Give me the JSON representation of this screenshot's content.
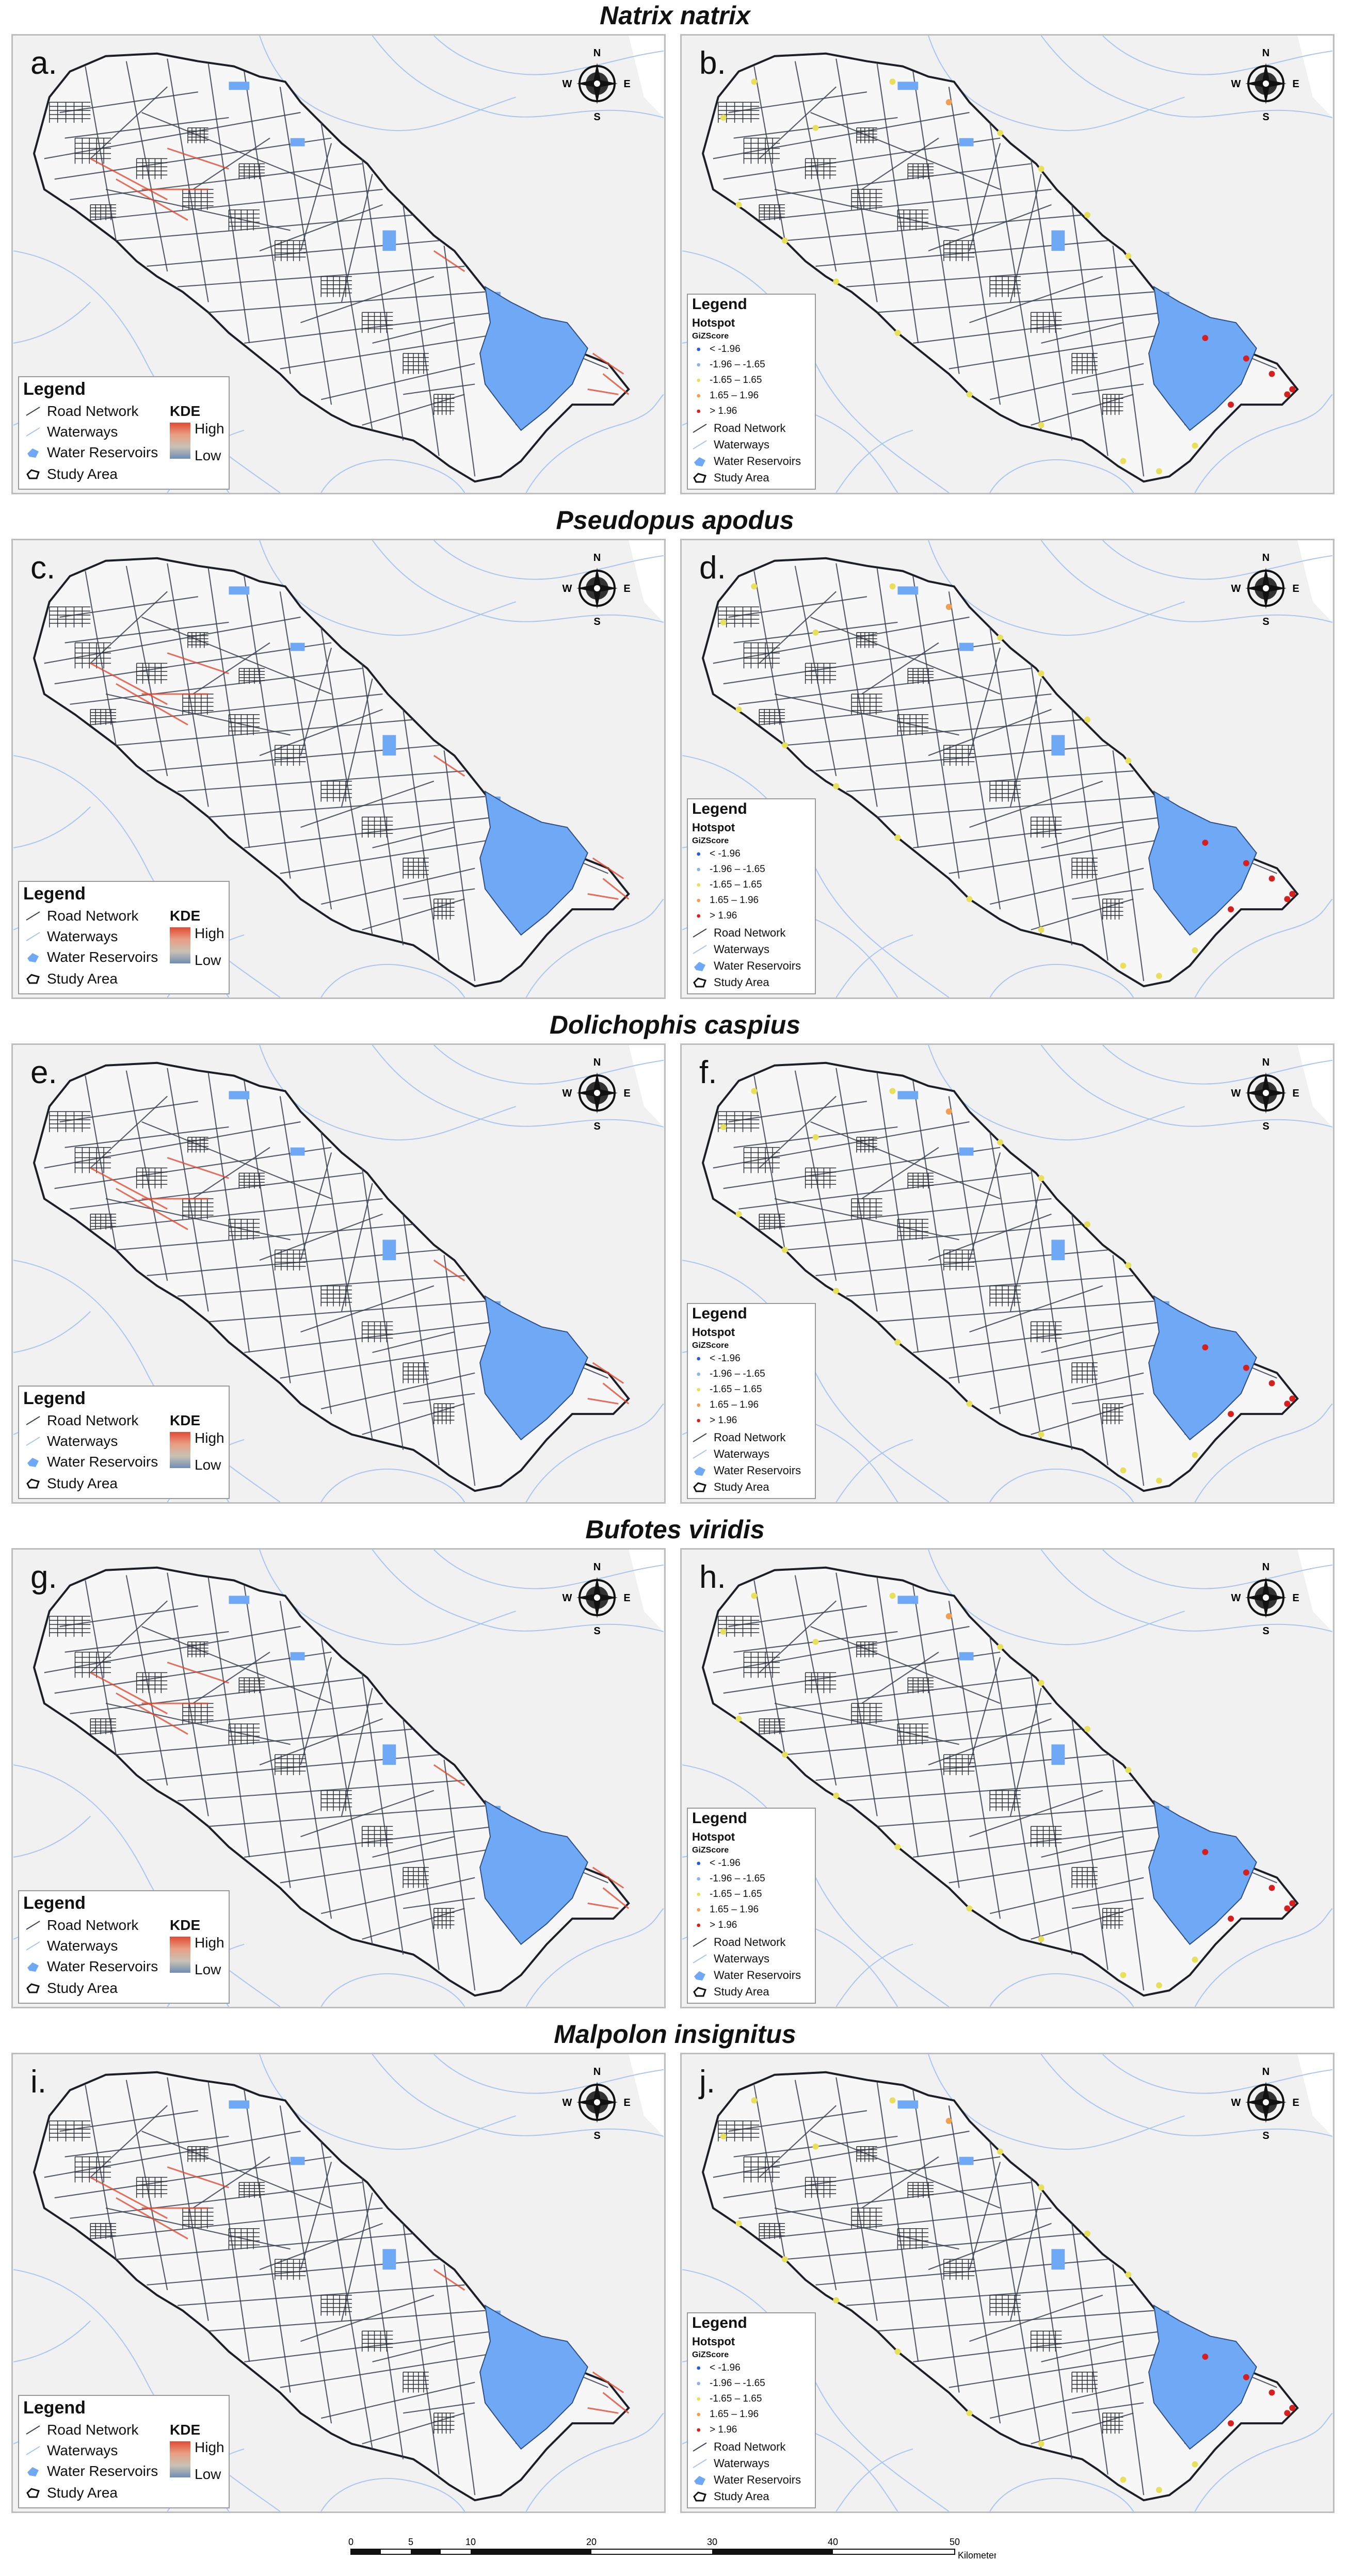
{
  "species_titles": [
    "Natrix natrix",
    "Pseudopus apodus",
    "Dolichophis caspius",
    "Bufotes viridis",
    "Malpolon insignitus"
  ],
  "panel_letters": [
    "a.",
    "b.",
    "c.",
    "d.",
    "e.",
    "f.",
    "g.",
    "h.",
    "i.",
    "j."
  ],
  "compass": {
    "n": "N",
    "s": "S",
    "e": "E",
    "w": "W"
  },
  "kde_legend": {
    "title": "Legend",
    "road_network": "Road Network",
    "waterways": "Waterways",
    "water_reservoirs": "Water Reservoirs",
    "study_area": "Study Area",
    "kde_label": "KDE",
    "high": "High",
    "low": "Low"
  },
  "hotspot_legend": {
    "title": "Legend",
    "hotspot": "Hotspot",
    "gizscore": "GiZScore",
    "classes": [
      {
        "label": "< -1.96",
        "color": "#2a5bd7"
      },
      {
        "label": "-1.96 – -1.65",
        "color": "#8fb3e8"
      },
      {
        "label": "-1.65 – 1.65",
        "color": "#e8e05a"
      },
      {
        "label": "1.65 – 1.96",
        "color": "#f0a050"
      },
      {
        "label": "> 1.96",
        "color": "#d62020"
      }
    ],
    "road_network": "Road Network",
    "waterways": "Waterways",
    "water_reservoirs": "Water Reservoirs",
    "study_area": "Study Area"
  },
  "scale_bar": {
    "ticks": [
      "0",
      "5",
      "10",
      "20",
      "30",
      "40",
      "50"
    ],
    "unit": "Kilometers"
  },
  "colors": {
    "panel_bg": "#f1f1f1",
    "road": "#3b4250",
    "waterway": "#a9c6ef",
    "reservoir": "#6fa8f5",
    "kde_high": "#e24a33",
    "kde_low": "#6f8db6"
  }
}
